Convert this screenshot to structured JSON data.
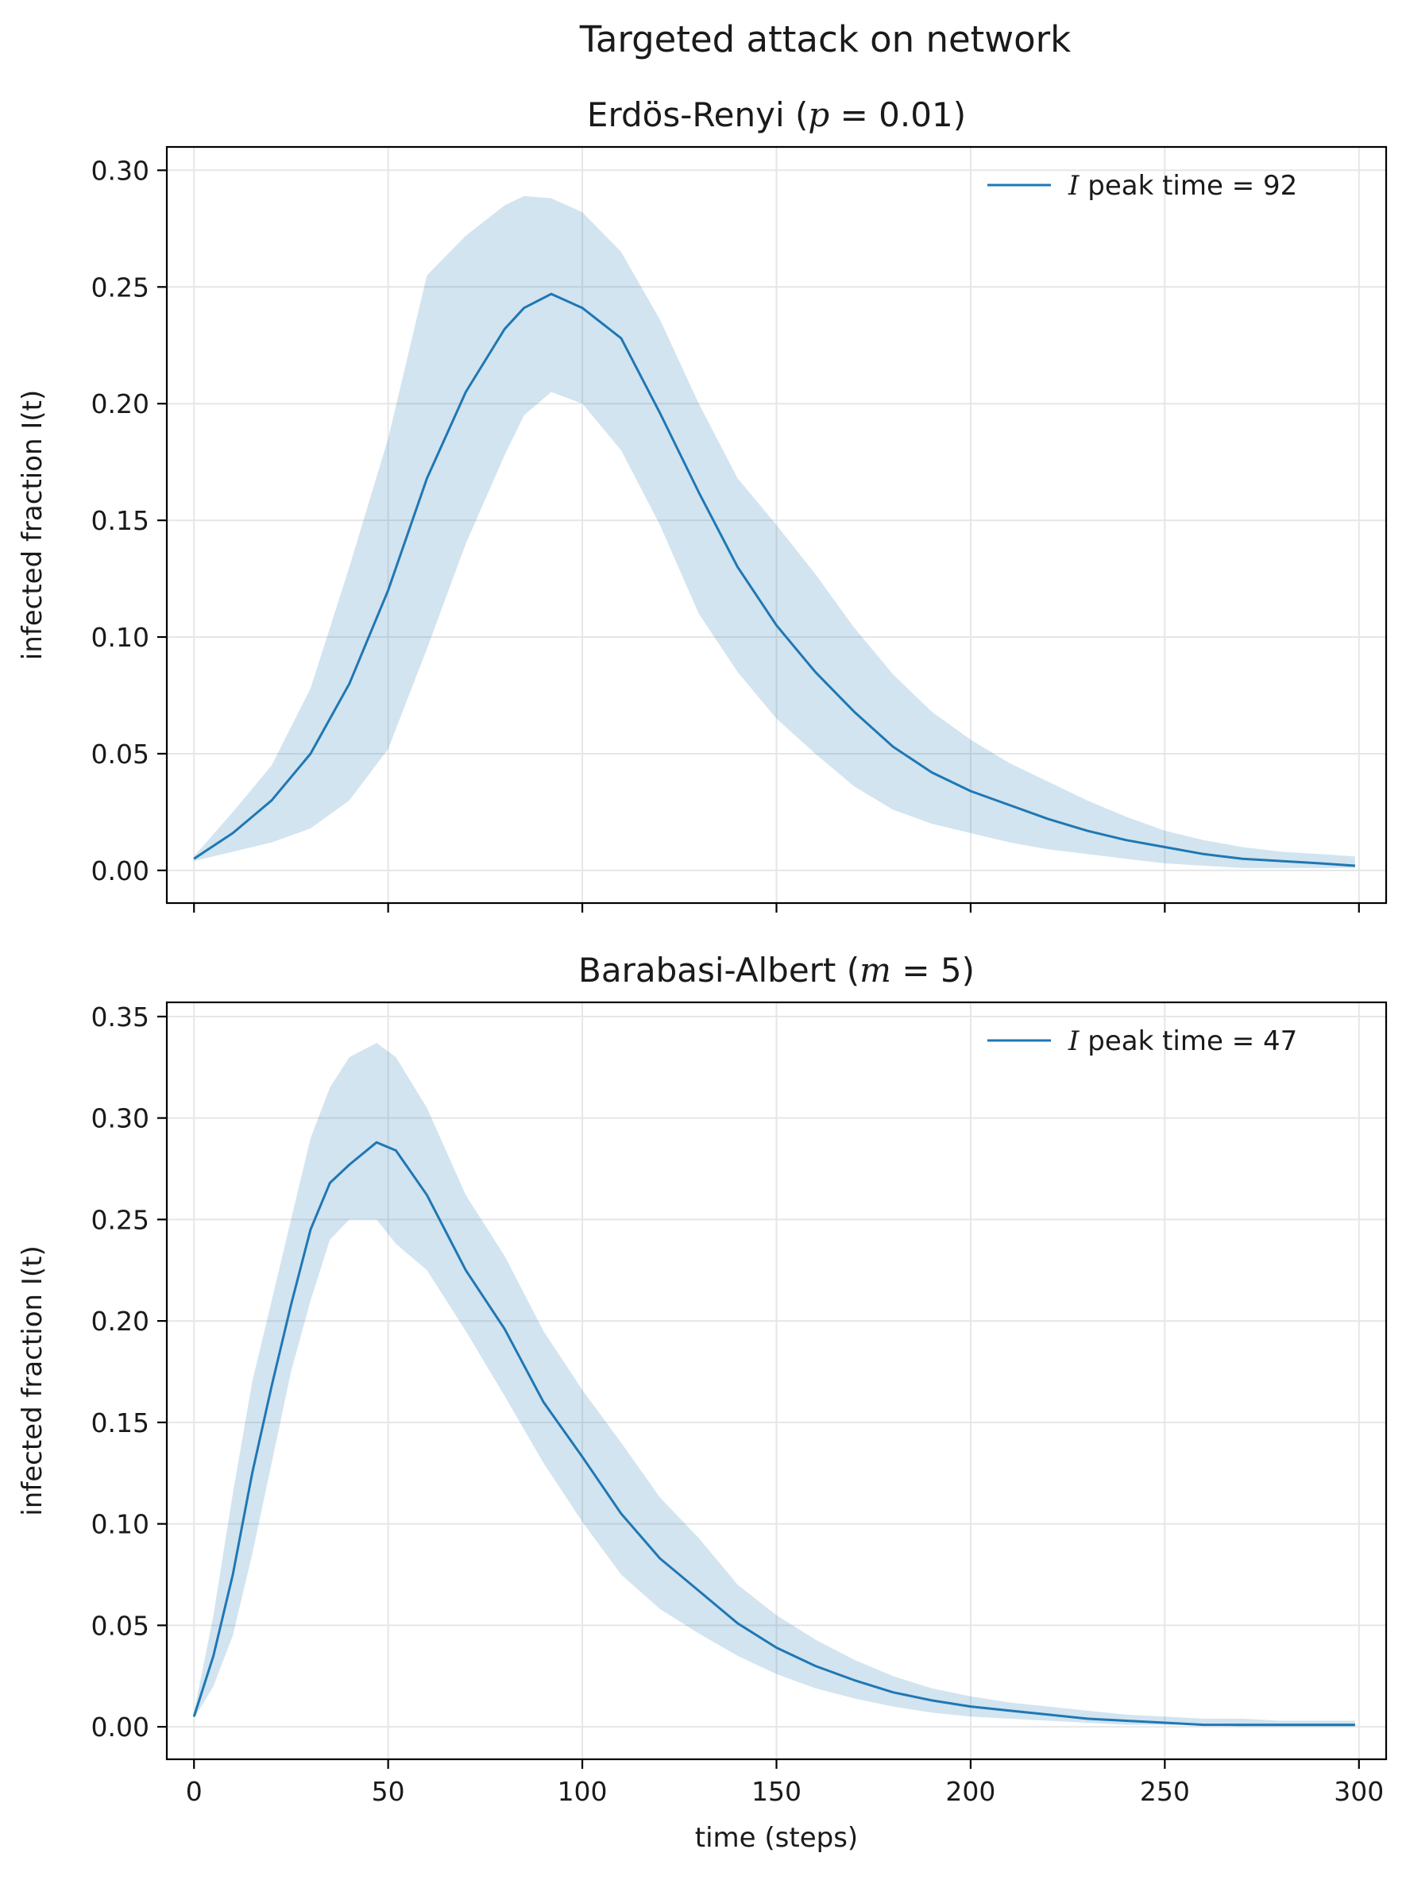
{
  "figure": {
    "suptitle": "Targeted attack on network"
  },
  "chart_data": [
    {
      "type": "line",
      "title_prefix": "Erdös-Renyi (",
      "title_var": "p",
      "title_suffix": " = 0.01)",
      "xlabel": "",
      "ylabel": "infected fraction I(t)",
      "xlim": [
        -7,
        307
      ],
      "ylim": [
        -0.014,
        0.31
      ],
      "xticks": [
        0,
        50,
        100,
        150,
        200,
        250,
        300
      ],
      "yticks": [
        0.0,
        0.05,
        0.1,
        0.15,
        0.2,
        0.25,
        0.3
      ],
      "ytick_labels": [
        "0.00",
        "0.05",
        "0.10",
        "0.15",
        "0.20",
        "0.25",
        "0.30"
      ],
      "show_xtick_labels": false,
      "grid": true,
      "legend_placement": "top-right",
      "color": "#1f77b4",
      "band_color": "#1f77b4",
      "legend": {
        "italic": "I",
        "text": " peak time = 92"
      },
      "series": [
        {
          "x": [
            0,
            10,
            20,
            30,
            40,
            50,
            60,
            70,
            80,
            85,
            92,
            100,
            110,
            120,
            130,
            140,
            150,
            160,
            170,
            180,
            190,
            200,
            210,
            220,
            230,
            240,
            250,
            260,
            270,
            280,
            290,
            299
          ],
          "y": [
            0.005,
            0.016,
            0.03,
            0.05,
            0.08,
            0.12,
            0.168,
            0.205,
            0.232,
            0.241,
            0.247,
            0.241,
            0.228,
            0.196,
            0.162,
            0.13,
            0.105,
            0.085,
            0.068,
            0.053,
            0.042,
            0.034,
            0.028,
            0.022,
            0.017,
            0.013,
            0.01,
            0.007,
            0.005,
            0.004,
            0.003,
            0.002
          ],
          "lower": [
            0.004,
            0.008,
            0.012,
            0.018,
            0.03,
            0.052,
            0.095,
            0.14,
            0.178,
            0.195,
            0.205,
            0.2,
            0.18,
            0.148,
            0.11,
            0.085,
            0.065,
            0.05,
            0.036,
            0.026,
            0.02,
            0.016,
            0.012,
            0.009,
            0.007,
            0.005,
            0.003,
            0.002,
            0.001,
            0.001,
            0.001,
            0.001
          ],
          "upper": [
            0.006,
            0.025,
            0.045,
            0.078,
            0.13,
            0.185,
            0.255,
            0.272,
            0.285,
            0.289,
            0.288,
            0.282,
            0.265,
            0.236,
            0.2,
            0.168,
            0.148,
            0.127,
            0.104,
            0.084,
            0.068,
            0.056,
            0.046,
            0.038,
            0.03,
            0.023,
            0.017,
            0.013,
            0.01,
            0.008,
            0.007,
            0.006
          ]
        }
      ]
    },
    {
      "type": "line",
      "title_prefix": "Barabasi-Albert (",
      "title_var": "m",
      "title_suffix": " = 5)",
      "xlabel": "time (steps)",
      "ylabel": "infected fraction I(t)",
      "xlim": [
        -7,
        307
      ],
      "ylim": [
        -0.016,
        0.357
      ],
      "xticks": [
        0,
        50,
        100,
        150,
        200,
        250,
        300
      ],
      "yticks": [
        0.0,
        0.05,
        0.1,
        0.15,
        0.2,
        0.25,
        0.3,
        0.35
      ],
      "ytick_labels": [
        "0.00",
        "0.05",
        "0.10",
        "0.15",
        "0.20",
        "0.25",
        "0.30",
        "0.35"
      ],
      "xtick_labels": [
        "0",
        "50",
        "100",
        "150",
        "200",
        "250",
        "300"
      ],
      "show_xtick_labels": true,
      "grid": true,
      "legend_placement": "top-right",
      "color": "#1f77b4",
      "band_color": "#1f77b4",
      "legend": {
        "italic": "I",
        "text": " peak time = 47"
      },
      "series": [
        {
          "x": [
            0,
            5,
            10,
            15,
            20,
            25,
            30,
            35,
            40,
            47,
            52,
            60,
            70,
            80,
            90,
            100,
            110,
            120,
            130,
            140,
            150,
            160,
            170,
            180,
            190,
            200,
            210,
            220,
            230,
            240,
            250,
            260,
            270,
            280,
            290,
            299
          ],
          "y": [
            0.005,
            0.035,
            0.075,
            0.125,
            0.168,
            0.208,
            0.245,
            0.268,
            0.277,
            0.288,
            0.284,
            0.262,
            0.225,
            0.196,
            0.16,
            0.133,
            0.105,
            0.083,
            0.067,
            0.051,
            0.039,
            0.03,
            0.023,
            0.017,
            0.013,
            0.01,
            0.008,
            0.006,
            0.004,
            0.003,
            0.002,
            0.001,
            0.001,
            0.001,
            0.001,
            0.001
          ],
          "lower": [
            0.004,
            0.02,
            0.045,
            0.085,
            0.13,
            0.175,
            0.21,
            0.24,
            0.25,
            0.25,
            0.238,
            0.225,
            0.195,
            0.163,
            0.13,
            0.101,
            0.075,
            0.058,
            0.046,
            0.035,
            0.026,
            0.019,
            0.014,
            0.01,
            0.007,
            0.005,
            0.004,
            0.003,
            0.002,
            0.001,
            0.001,
            0.001,
            0.0,
            0.0,
            0.0,
            0.0
          ],
          "upper": [
            0.007,
            0.055,
            0.115,
            0.17,
            0.21,
            0.25,
            0.29,
            0.315,
            0.33,
            0.337,
            0.33,
            0.305,
            0.262,
            0.232,
            0.195,
            0.166,
            0.14,
            0.113,
            0.093,
            0.07,
            0.055,
            0.043,
            0.033,
            0.025,
            0.019,
            0.015,
            0.012,
            0.01,
            0.008,
            0.006,
            0.005,
            0.004,
            0.004,
            0.003,
            0.003,
            0.003
          ]
        }
      ]
    }
  ]
}
